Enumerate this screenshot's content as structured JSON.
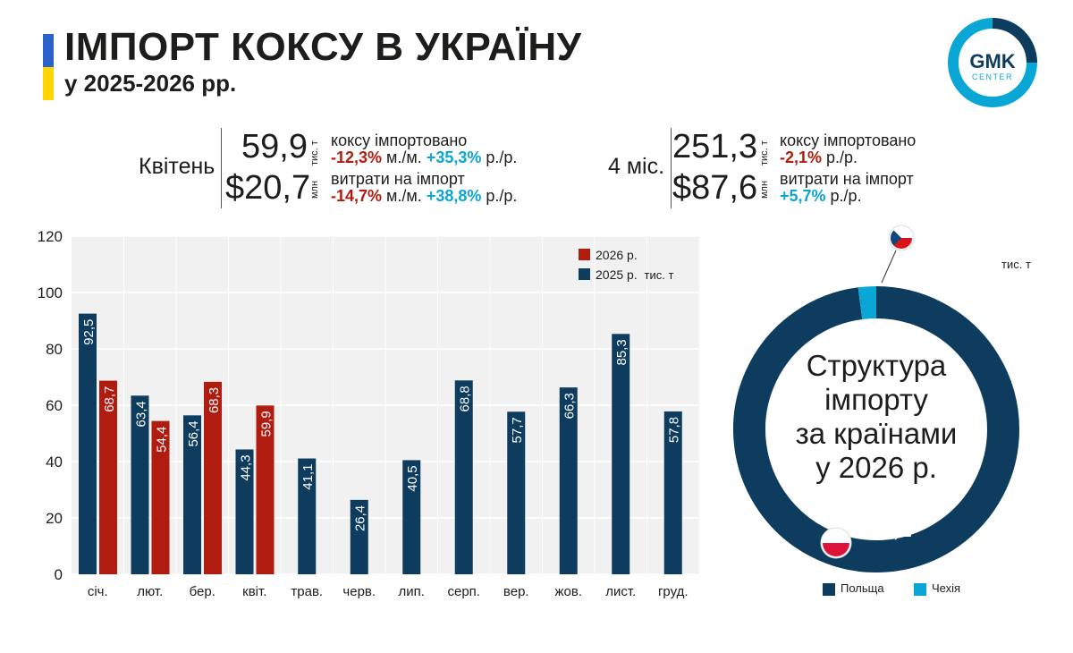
{
  "header": {
    "title": "ІМПОРТ КОКСУ В УКРАЇНУ",
    "subtitle": "у 2025-2026 рр."
  },
  "logo": {
    "line1": "GMK",
    "line2": "CENTER"
  },
  "april": {
    "label": "Квітень",
    "volume": "59,9",
    "volume_unit": "тис. т",
    "volume_desc": "коксу імпортовано",
    "volume_mm": "-12,3%",
    "volume_mm_suffix": " м./м. ",
    "volume_yy": "+35,3%",
    "volume_yy_suffix": " р./р.",
    "cost": "$20,7",
    "cost_unit": "млн",
    "cost_desc": "витрати на імпорт",
    "cost_mm": "-14,7%",
    "cost_mm_suffix": " м./м. ",
    "cost_yy": "+38,8%",
    "cost_yy_suffix": " р./р."
  },
  "four_months": {
    "label": "4 міс.",
    "volume": "251,3",
    "volume_unit": "тис. т",
    "volume_desc": "коксу імпортовано",
    "volume_yy": "-2,1%",
    "volume_yy_suffix": " р./р.",
    "cost": "$87,6",
    "cost_unit": "млн",
    "cost_desc": "витрати на імпорт",
    "cost_yy": "+5,7%",
    "cost_yy_suffix": " р./р."
  },
  "colors": {
    "navy": "#0d3c5f",
    "red": "#b01c0f",
    "cyan": "#0aa6d6"
  },
  "chart_data": [
    {
      "type": "bar",
      "units_label": "тис. т",
      "categories": [
        "січ.",
        "лют.",
        "бер.",
        "квіт.",
        "трав.",
        "черв.",
        "лип.",
        "серп.",
        "вер.",
        "жов.",
        "лист.",
        "груд."
      ],
      "series": [
        {
          "name": "2025 р.",
          "color": "#0d3c5f",
          "values": [
            92.5,
            63.4,
            56.4,
            44.3,
            41.1,
            26.4,
            40.5,
            68.8,
            57.7,
            66.3,
            85.3,
            57.8
          ],
          "labels": [
            "92,5",
            "63,4",
            "56,4",
            "44,3",
            "41,1",
            "26,4",
            "40,5",
            "68,8",
            "57,7",
            "66,3",
            "85,3",
            "57,8"
          ]
        },
        {
          "name": "2026 р.",
          "color": "#b01c0f",
          "values": [
            68.7,
            54.4,
            68.3,
            59.9,
            null,
            null,
            null,
            null,
            null,
            null,
            null,
            null
          ],
          "labels": [
            "68,7",
            "54,4",
            "68,3",
            "59,9",
            "",
            "",
            "",
            "",
            "",
            "",
            "",
            ""
          ]
        }
      ],
      "legend_order": [
        "2026 р.",
        "2025 р."
      ],
      "ylim": [
        0,
        120
      ],
      "yticks": [
        0,
        20,
        40,
        60,
        80,
        100,
        120
      ],
      "grid": true,
      "legend_position": "top-right"
    },
    {
      "type": "pie",
      "donut": true,
      "title_lines": [
        "Структура",
        "імпорту",
        "за країнами",
        "у 2026 р."
      ],
      "units_label": "тис. т",
      "slices": [
        {
          "name": "Польща",
          "value": 246.2,
          "label": "246,2",
          "color": "#0d3c5f"
        },
        {
          "name": "Чехія",
          "value": 5.1,
          "label": "",
          "color": "#0aa6d6"
        }
      ]
    }
  ]
}
